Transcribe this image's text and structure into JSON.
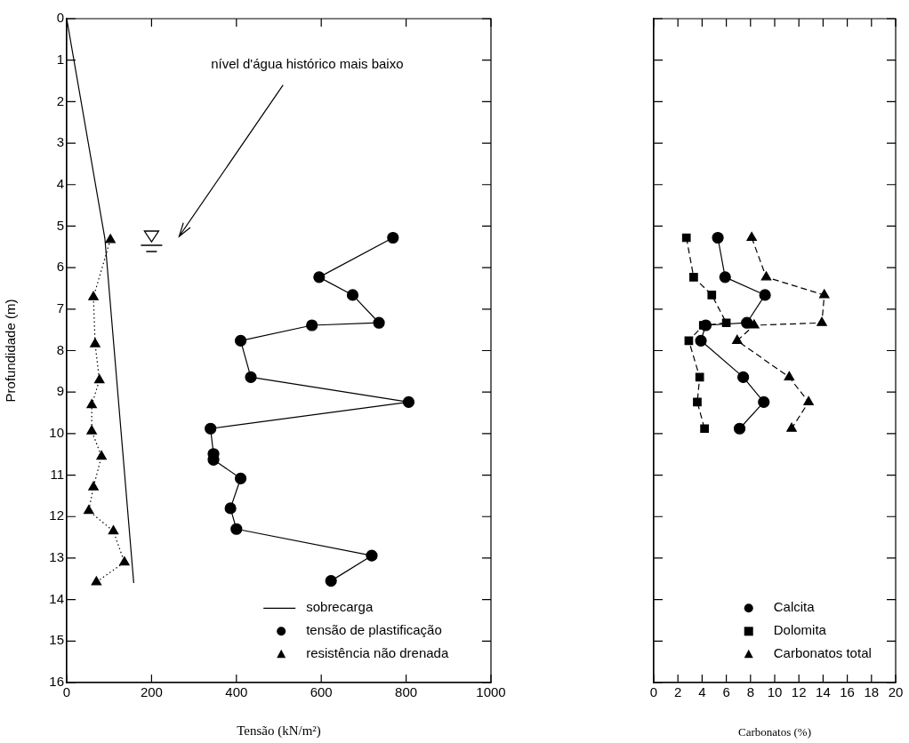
{
  "chart_data": [
    {
      "type": "line",
      "xlabel": "Tensão (kN/m²)",
      "ylabel": "Profundidade (m)",
      "xlim": [
        0,
        1000
      ],
      "xticks": [
        0,
        200,
        400,
        600,
        800,
        1000
      ],
      "ylim": [
        16,
        0
      ],
      "yticks": [
        0,
        1,
        2,
        3,
        4,
        5,
        6,
        7,
        8,
        9,
        10,
        11,
        12,
        13,
        14,
        15,
        16
      ],
      "grid": false,
      "legend": "bottom right",
      "annotations": [
        "nível d'água histórico mais baixo"
      ],
      "series": [
        {
          "name": "sobrecarga",
          "color": "#000000",
          "marker": "none",
          "line_style": "solid",
          "x": [
            0,
            90,
            158
          ],
          "values": [
            0,
            5.3,
            13.6
          ]
        },
        {
          "name": "tensão de plastificação",
          "color": "#000000",
          "marker": "circle",
          "line_style": "solid",
          "x": [
            769,
            595,
            674,
            736,
            578,
            410,
            434,
            806,
            339,
            346,
            346,
            410,
            386,
            400,
            719,
            623
          ],
          "values": [
            5.28,
            6.23,
            6.66,
            7.33,
            7.39,
            7.76,
            8.64,
            9.24,
            9.88,
            10.49,
            10.63,
            11.08,
            11.8,
            12.3,
            12.94,
            13.55
          ]
        },
        {
          "name": "resistência não drenada",
          "color": "#000000",
          "marker": "triangle",
          "line_style": "dotted",
          "x": [
            103,
            63,
            67,
            77,
            59,
            59,
            82,
            63,
            52,
            110,
            136,
            70
          ],
          "values": [
            5.33,
            6.71,
            7.84,
            8.71,
            9.31,
            9.94,
            10.55,
            11.29,
            11.86,
            12.35,
            13.1,
            13.58
          ]
        }
      ]
    },
    {
      "type": "line",
      "xlabel": "Carbonatos (%)",
      "xlim": [
        0,
        20
      ],
      "xticks": [
        0,
        2,
        4,
        6,
        8,
        10,
        12,
        14,
        16,
        18,
        20
      ],
      "ylim": [
        16,
        0
      ],
      "yticks": [
        0,
        1,
        2,
        3,
        4,
        5,
        6,
        7,
        8,
        9,
        10,
        11,
        12,
        13,
        14,
        15,
        16
      ],
      "tick_labels": "x",
      "grid": false,
      "legend": "bottom right",
      "series": [
        {
          "name": "Calcita",
          "color": "#000000",
          "marker": "circle",
          "line_style": "solid",
          "x": [
            5.3,
            5.9,
            9.2,
            7.7,
            4.3,
            3.9,
            7.4,
            9.1,
            7.1
          ],
          "values": [
            5.28,
            6.23,
            6.66,
            7.33,
            7.39,
            7.76,
            8.64,
            9.24,
            9.88
          ]
        },
        {
          "name": "Dolomita",
          "color": "#000000",
          "marker": "square",
          "line_style": "dashed",
          "x": [
            2.7,
            3.3,
            4.8,
            6.0,
            4.1,
            2.9,
            3.8,
            3.6,
            4.2
          ],
          "values": [
            5.28,
            6.23,
            6.66,
            7.33,
            7.39,
            7.76,
            8.64,
            9.24,
            9.88
          ]
        },
        {
          "name": "Carbonatos total",
          "color": "#000000",
          "marker": "triangle",
          "line_style": "dashed",
          "x": [
            8.1,
            9.3,
            14.1,
            13.9,
            8.3,
            6.9,
            11.2,
            12.8,
            11.4
          ],
          "values": [
            5.28,
            6.23,
            6.66,
            7.33,
            7.39,
            7.76,
            8.64,
            9.24,
            9.88
          ]
        }
      ]
    }
  ]
}
